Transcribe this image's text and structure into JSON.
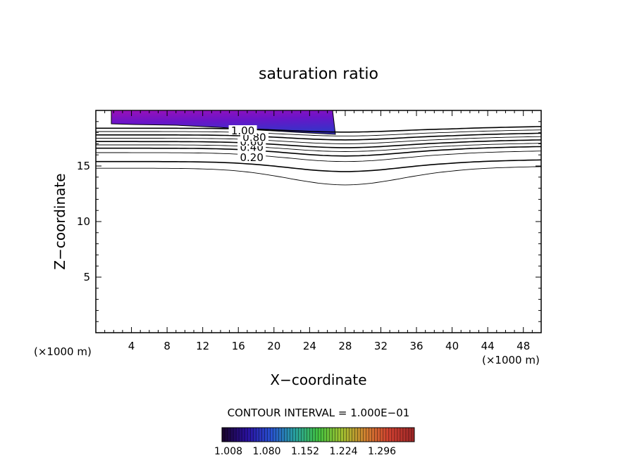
{
  "chart_data": {
    "type": "contour",
    "title": "saturation ratio",
    "xlabel": "X−coordinate",
    "ylabel": "Z−coordinate",
    "x_unit_left": "(×1000 m)",
    "x_unit_right": "(×1000 m)",
    "xlim": [
      0,
      50
    ],
    "ylim": [
      0,
      20
    ],
    "x_ticks": [
      4,
      8,
      12,
      16,
      20,
      24,
      28,
      32,
      36,
      40,
      44,
      48
    ],
    "y_ticks": [
      5,
      10,
      15
    ],
    "contour_interval_text": "CONTOUR INTERVAL = 1.000E−01",
    "contour_levels": [
      0.1,
      0.2,
      0.3,
      0.4,
      0.5,
      0.6,
      0.7,
      0.8,
      0.9,
      1.0
    ],
    "contour_labels": [
      {
        "text": "0.20",
        "x": 17.5,
        "y": 15.7
      },
      {
        "text": "0.40",
        "x": 17.5,
        "y": 16.6
      },
      {
        "text": "0.60",
        "x": 17.5,
        "y": 17.1
      },
      {
        "text": "0.80",
        "x": 17.8,
        "y": 17.5
      },
      {
        "text": "1.00",
        "x": 16.5,
        "y": 18.1
      }
    ],
    "colorbar": {
      "tick_labels": [
        "1.008",
        "1.080",
        "1.152",
        "1.224",
        "1.296"
      ],
      "colors": [
        "#1a0530",
        "#2a10a0",
        "#2850d0",
        "#28a0a0",
        "#40c040",
        "#a0c030",
        "#d08030",
        "#d04030",
        "#a02828"
      ]
    },
    "fill_colors": [
      "#9a10b8",
      "#7a10c8",
      "#5a18c8",
      "#3a30c8"
    ]
  }
}
